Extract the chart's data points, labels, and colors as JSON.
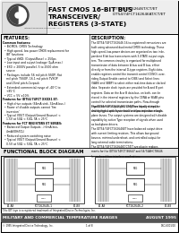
{
  "title_line1": "FAST CMOS 16-BIT BUS",
  "title_line2": "TRANSCEIVER/",
  "title_line3": "REGISTERS (3-STATE)",
  "part_numbers_line1": "IDT54FCT162646T/CT/ET",
  "part_numbers_line2": "IDT54/74FCT162646AT/CT/ET",
  "company_name": "Integrated Device Technology, Inc.",
  "features_title": "FEATURES:",
  "description_title": "DESCRIPTION:",
  "functional_block_title": "FUNCTIONAL BLOCK DIAGRAM",
  "footer_text": "This IDT logo is a registered trademark of Integrated Device Technologies, Inc.",
  "footer_category": "MILITARY AND COMMERCIAL TEMPERATURE RANGES",
  "footer_date": "AUGUST 1995",
  "footer_idt": "© 1995 Integrated Device Technology, Inc.",
  "footer_page": "1 of 8",
  "footer_code": "DSC-6001/10",
  "bg_color": "#ffffff",
  "border_color": "#000000",
  "header_bg": "#eeeeee",
  "footer_bar_bg": "#555555",
  "footer_bar_text": "#ffffff"
}
